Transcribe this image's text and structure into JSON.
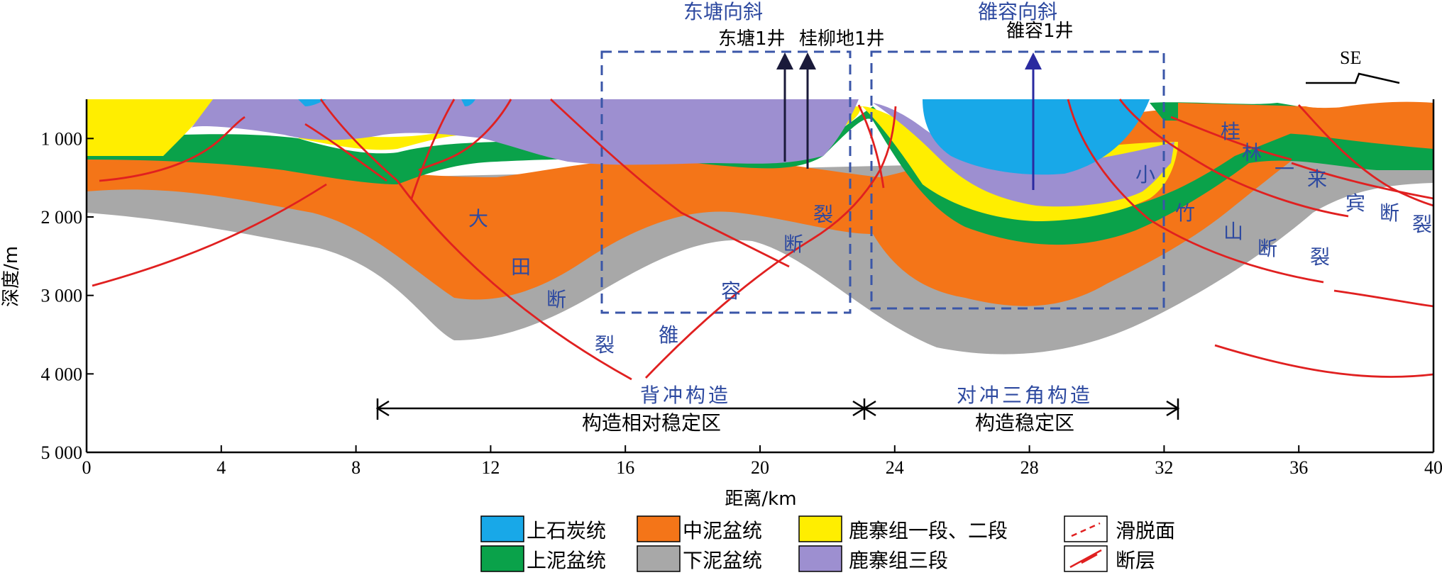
{
  "chart_data": {
    "type": "geologic_cross_section",
    "orientation_label": "SE",
    "y_axis": {
      "label": "深度/m",
      "ticks": [
        "1 000",
        "2 000",
        "3 000",
        "4 000",
        "5 000"
      ],
      "range": [
        500,
        5000
      ]
    },
    "x_axis": {
      "label": "距离/km",
      "ticks": [
        "0",
        "4",
        "8",
        "12",
        "16",
        "20",
        "24",
        "28",
        "32",
        "36",
        "40"
      ],
      "range": [
        0,
        40
      ]
    },
    "synclines": [
      {
        "name": "东塘向斜",
        "wells": [
          "东塘1井",
          "桂柳地1井"
        ]
      },
      {
        "name": "雒容向斜",
        "wells": [
          "雒容1井"
        ]
      }
    ],
    "faults": [
      {
        "name_chars": [
          "大",
          "田",
          "断",
          "裂"
        ]
      },
      {
        "name_chars": [
          "雒",
          "容",
          "断",
          "裂"
        ]
      },
      {
        "name_chars": [
          "小",
          "竹",
          "山",
          "断",
          "裂"
        ]
      },
      {
        "name_chars": [
          "桂",
          "林",
          "一",
          "来",
          "宾",
          "断",
          "裂"
        ]
      }
    ],
    "zones": [
      {
        "structure": "背冲构造",
        "stability": "构造相对稳定区",
        "x_range_km": [
          8.7,
          23.2
        ]
      },
      {
        "structure": "对冲三角构造",
        "stability": "构造稳定区",
        "x_range_km": [
          23.2,
          32.8
        ]
      }
    ],
    "legend": [
      {
        "label": "上石炭统",
        "color": "#18a8e8"
      },
      {
        "label": "中泥盆统",
        "color": "#f47518"
      },
      {
        "label": "鹿寨组一段、二段",
        "color": "#ffee00"
      },
      {
        "label": "滑脱面",
        "symbol": "dashed-red"
      },
      {
        "label": "上泥盆统",
        "color": "#0aa24a"
      },
      {
        "label": "下泥盆统",
        "color": "#a8a8a8"
      },
      {
        "label": "鹿寨组三段",
        "color": "#9d8fd0"
      },
      {
        "label": "断层",
        "symbol": "fault-red"
      }
    ]
  }
}
